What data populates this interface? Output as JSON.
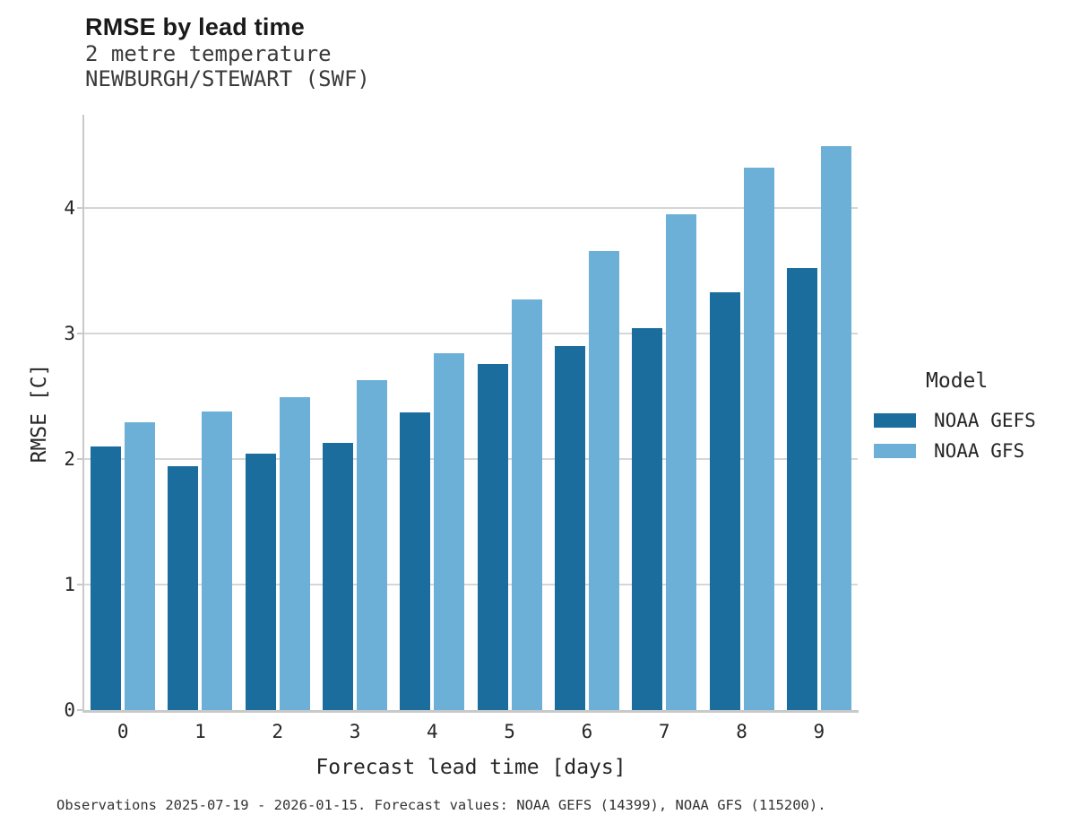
{
  "header": {
    "title": "RMSE by lead time",
    "subtitle_variable": "2 metre temperature",
    "subtitle_station": "NEWBURGH/STEWART (SWF)"
  },
  "chart_data": {
    "type": "bar",
    "title": "RMSE by lead time",
    "subtitle": "2 metre temperature, NEWBURGH/STEWART (SWF)",
    "categories": [
      "0",
      "1",
      "2",
      "3",
      "4",
      "5",
      "6",
      "7",
      "8",
      "9"
    ],
    "series": [
      {
        "name": "NOAA GEFS",
        "color": "#1b6d9e",
        "values": [
          2.1,
          1.94,
          2.04,
          2.13,
          2.37,
          2.76,
          2.9,
          3.04,
          3.33,
          3.52
        ]
      },
      {
        "name": "NOAA GFS",
        "color": "#6cb0d8",
        "values": [
          2.29,
          2.38,
          2.49,
          2.63,
          2.84,
          3.27,
          3.66,
          3.95,
          4.32,
          4.49
        ]
      }
    ],
    "xlabel": "Forecast lead time [days]",
    "ylabel": "RMSE [C]",
    "ylim": [
      0,
      4.74
    ],
    "yticks": [
      0,
      1,
      2,
      3,
      4
    ],
    "grid": true,
    "legend_title": "Model",
    "legend_position": "right-outside"
  },
  "legend": {
    "title": "Model",
    "entries": [
      {
        "label": "NOAA GEFS",
        "color": "#1b6d9e"
      },
      {
        "label": "NOAA GFS",
        "color": "#6cb0d8"
      }
    ]
  },
  "footer": {
    "text": "Observations 2025-07-19 - 2026-01-15. Forecast values: NOAA GEFS (14399), NOAA GFS (115200)."
  },
  "colors": {
    "gefs_dark_blue": "#1b6d9e",
    "gfs_light_blue": "#6cb0d8",
    "gridline_gray": "#d6d6d6",
    "spine_gray": "#c9c9c9"
  }
}
